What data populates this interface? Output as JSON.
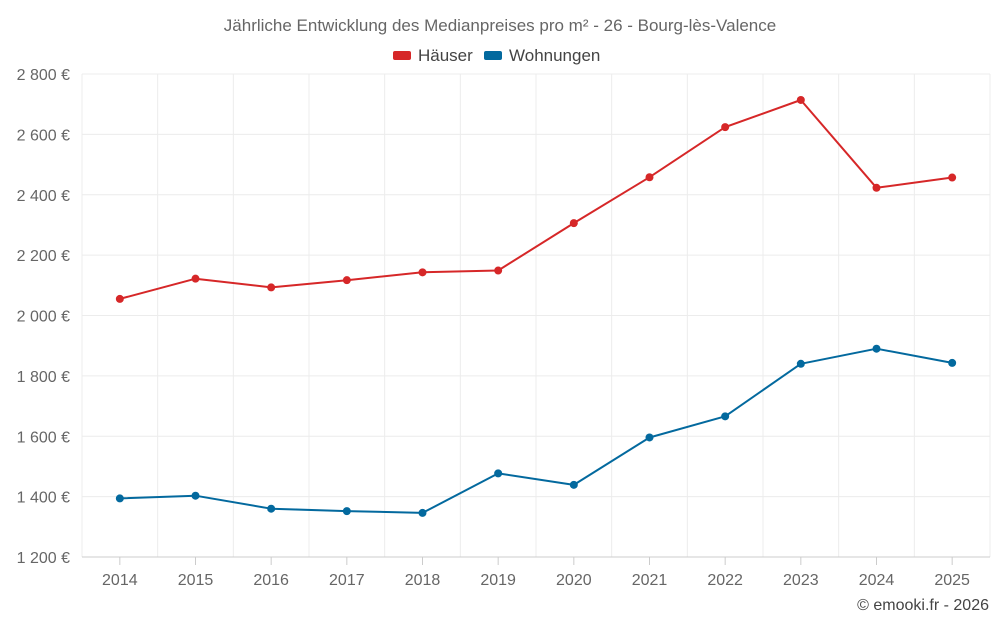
{
  "chart_data": {
    "type": "line",
    "title": "Jährliche Entwicklung des Medianpreises pro m² - 26 - Bourg-lès-Valence",
    "categories": [
      "2014",
      "2015",
      "2016",
      "2017",
      "2018",
      "2019",
      "2020",
      "2021",
      "2022",
      "2023",
      "2024",
      "2025"
    ],
    "series": [
      {
        "name": "Häuser",
        "color": "#d62728",
        "values": [
          2055,
          2122,
          2093,
          2117,
          2143,
          2149,
          2306,
          2458,
          2624,
          2714,
          2423,
          2457
        ]
      },
      {
        "name": "Wohnungen",
        "color": "#03699e",
        "values": [
          1394,
          1403,
          1360,
          1352,
          1346,
          1477,
          1439,
          1596,
          1666,
          1840,
          1890,
          1843
        ]
      }
    ],
    "yticks": [
      1200,
      1400,
      1600,
      1800,
      2000,
      2200,
      2400,
      2600,
      2800
    ],
    "ytick_labels": [
      "1 200 €",
      "1 400 €",
      "1 600 €",
      "1 800 €",
      "2 000 €",
      "2 200 €",
      "2 400 €",
      "2 600 €",
      "2 800 €"
    ],
    "ylim": [
      1200,
      2800
    ],
    "xlabel": "",
    "ylabel": "",
    "grid": true,
    "legend": "top-center",
    "credit": "© emooki.fr - 2026"
  }
}
